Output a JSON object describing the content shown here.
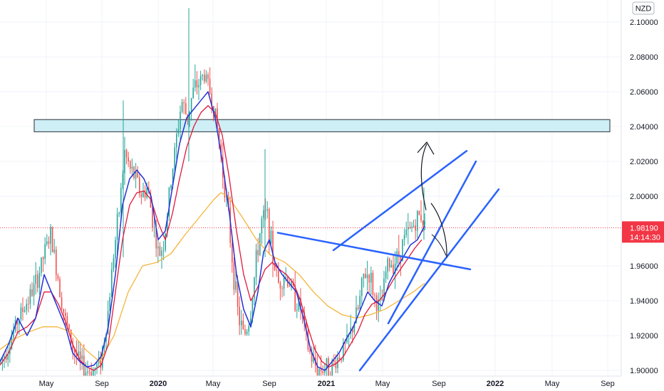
{
  "chart_data": {
    "type": "candlestick",
    "currency": "NZD",
    "ylim": [
      1.9,
      2.108
    ],
    "y_ticks": [
      "2.10000",
      "2.08000",
      "2.06000",
      "2.04000",
      "2.02000",
      "2.00000",
      "1.96000",
      "1.94000",
      "1.92000",
      "1.90000"
    ],
    "x_ticks": [
      "May",
      "Sep",
      "2020",
      "May",
      "Sep",
      "2021",
      "May",
      "Sep",
      "2022",
      "May",
      "Sep"
    ],
    "x_ticks_bold": [
      "2020",
      "2021",
      "2022"
    ],
    "last_price": "1.98190",
    "countdown": "14:14:30",
    "colors": {
      "up": "#26a69a",
      "down": "#ef5350",
      "ma_fast": "#2432d8",
      "ma_mid": "#e0183c",
      "ma_slow": "#f5b53a",
      "drawing": "#2962ff",
      "zone_fill": "#cdeff5",
      "price_label": "#f23645"
    },
    "candle_path": [
      [
        0,
        1.905
      ],
      [
        12,
        1.915
      ],
      [
        25,
        1.93
      ],
      [
        38,
        1.94
      ],
      [
        50,
        1.95
      ],
      [
        62,
        1.968
      ],
      [
        70,
        1.978
      ],
      [
        80,
        1.955
      ],
      [
        90,
        1.93
      ],
      [
        100,
        1.915
      ],
      [
        110,
        1.905
      ],
      [
        120,
        1.9
      ],
      [
        130,
        1.9
      ],
      [
        140,
        1.905
      ],
      [
        150,
        1.93
      ],
      [
        158,
        1.965
      ],
      [
        166,
        1.99
      ],
      [
        174,
        2.025
      ],
      [
        182,
        2.015
      ],
      [
        190,
        2.01
      ],
      [
        198,
        2.0
      ],
      [
        206,
        2.005
      ],
      [
        214,
        1.985
      ],
      [
        222,
        1.965
      ],
      [
        230,
        1.975
      ],
      [
        238,
        2.005
      ],
      [
        246,
        2.03
      ],
      [
        254,
        2.055
      ],
      [
        262,
        2.045
      ],
      [
        270,
        2.06
      ],
      [
        278,
        2.065
      ],
      [
        286,
        2.07
      ],
      [
        294,
        2.06
      ],
      [
        302,
        2.045
      ],
      [
        310,
        2.02
      ],
      [
        318,
        1.995
      ],
      [
        326,
        1.96
      ],
      [
        334,
        1.93
      ],
      [
        342,
        1.92
      ],
      [
        350,
        1.93
      ],
      [
        358,
        1.96
      ],
      [
        366,
        1.985
      ],
      [
        374,
        1.99
      ],
      [
        382,
        1.965
      ],
      [
        390,
        1.95
      ],
      [
        398,
        1.955
      ],
      [
        406,
        1.95
      ],
      [
        414,
        1.94
      ],
      [
        422,
        1.935
      ],
      [
        430,
        1.915
      ],
      [
        438,
        1.905
      ],
      [
        446,
        1.9
      ],
      [
        454,
        1.902
      ],
      [
        462,
        1.9
      ],
      [
        470,
        1.905
      ],
      [
        478,
        1.91
      ],
      [
        486,
        1.915
      ],
      [
        494,
        1.925
      ],
      [
        502,
        1.935
      ],
      [
        510,
        1.955
      ],
      [
        518,
        1.955
      ],
      [
        526,
        1.94
      ],
      [
        534,
        1.935
      ],
      [
        542,
        1.96
      ],
      [
        550,
        1.962
      ],
      [
        558,
        1.965
      ],
      [
        566,
        1.975
      ],
      [
        574,
        1.98
      ],
      [
        582,
        1.985
      ],
      [
        590,
        1.99
      ],
      [
        596,
        1.982
      ]
    ],
    "ma_fast": [
      [
        0,
        1.905
      ],
      [
        12,
        1.915
      ],
      [
        25,
        1.93
      ],
      [
        38,
        1.92
      ],
      [
        50,
        1.93
      ],
      [
        62,
        1.955
      ],
      [
        72,
        1.945
      ],
      [
        82,
        1.935
      ],
      [
        92,
        1.925
      ],
      [
        102,
        1.91
      ],
      [
        112,
        1.905
      ],
      [
        122,
        1.902
      ],
      [
        132,
        1.903
      ],
      [
        142,
        1.908
      ],
      [
        152,
        1.925
      ],
      [
        162,
        1.955
      ],
      [
        172,
        1.995
      ],
      [
        182,
        2.01
      ],
      [
        192,
        2.015
      ],
      [
        202,
        2.01
      ],
      [
        212,
        2.0
      ],
      [
        222,
        1.975
      ],
      [
        232,
        1.98
      ],
      [
        242,
        2.005
      ],
      [
        252,
        2.03
      ],
      [
        262,
        2.045
      ],
      [
        272,
        2.05
      ],
      [
        282,
        2.055
      ],
      [
        292,
        2.06
      ],
      [
        302,
        2.045
      ],
      [
        312,
        2.02
      ],
      [
        322,
        1.99
      ],
      [
        332,
        1.955
      ],
      [
        342,
        1.935
      ],
      [
        352,
        1.925
      ],
      [
        362,
        1.945
      ],
      [
        370,
        1.968
      ],
      [
        378,
        1.975
      ],
      [
        386,
        1.962
      ],
      [
        396,
        1.955
      ],
      [
        406,
        1.95
      ],
      [
        416,
        1.945
      ],
      [
        426,
        1.93
      ],
      [
        436,
        1.912
      ],
      [
        446,
        1.902
      ],
      [
        456,
        1.9
      ],
      [
        466,
        1.905
      ],
      [
        476,
        1.91
      ],
      [
        486,
        1.918
      ],
      [
        496,
        1.925
      ],
      [
        506,
        1.935
      ],
      [
        516,
        1.945
      ],
      [
        526,
        1.94
      ],
      [
        536,
        1.937
      ],
      [
        546,
        1.95
      ],
      [
        556,
        1.958
      ],
      [
        566,
        1.965
      ],
      [
        576,
        1.972
      ],
      [
        586,
        1.975
      ],
      [
        596,
        1.983
      ]
    ],
    "ma_mid": [
      [
        0,
        1.903
      ],
      [
        12,
        1.91
      ],
      [
        25,
        1.922
      ],
      [
        38,
        1.925
      ],
      [
        50,
        1.93
      ],
      [
        62,
        1.945
      ],
      [
        72,
        1.945
      ],
      [
        82,
        1.938
      ],
      [
        92,
        1.928
      ],
      [
        102,
        1.915
      ],
      [
        112,
        1.906
      ],
      [
        122,
        1.902
      ],
      [
        132,
        1.9
      ],
      [
        142,
        1.903
      ],
      [
        152,
        1.915
      ],
      [
        162,
        1.945
      ],
      [
        172,
        1.975
      ],
      [
        182,
        1.995
      ],
      [
        192,
        2.002
      ],
      [
        202,
        2.003
      ],
      [
        212,
        1.998
      ],
      [
        222,
        1.985
      ],
      [
        232,
        1.975
      ],
      [
        242,
        1.99
      ],
      [
        252,
        2.01
      ],
      [
        262,
        2.028
      ],
      [
        272,
        2.04
      ],
      [
        282,
        2.048
      ],
      [
        292,
        2.052
      ],
      [
        302,
        2.048
      ],
      [
        312,
        2.035
      ],
      [
        322,
        2.01
      ],
      [
        332,
        1.98
      ],
      [
        342,
        1.955
      ],
      [
        352,
        1.94
      ],
      [
        362,
        1.948
      ],
      [
        372,
        1.958
      ],
      [
        382,
        1.962
      ],
      [
        392,
        1.958
      ],
      [
        402,
        1.955
      ],
      [
        412,
        1.95
      ],
      [
        422,
        1.94
      ],
      [
        432,
        1.925
      ],
      [
        442,
        1.912
      ],
      [
        452,
        1.905
      ],
      [
        462,
        1.902
      ],
      [
        472,
        1.904
      ],
      [
        482,
        1.908
      ],
      [
        492,
        1.915
      ],
      [
        502,
        1.922
      ],
      [
        512,
        1.932
      ],
      [
        522,
        1.938
      ],
      [
        532,
        1.94
      ],
      [
        542,
        1.945
      ],
      [
        552,
        1.952
      ],
      [
        562,
        1.958
      ],
      [
        572,
        1.964
      ],
      [
        582,
        1.97
      ],
      [
        592,
        1.975
      ]
    ],
    "ma_slow": [
      [
        0,
        1.912
      ],
      [
        20,
        1.918
      ],
      [
        40,
        1.922
      ],
      [
        60,
        1.925
      ],
      [
        80,
        1.925
      ],
      [
        100,
        1.922
      ],
      [
        120,
        1.912
      ],
      [
        140,
        1.905
      ],
      [
        160,
        1.92
      ],
      [
        180,
        1.945
      ],
      [
        200,
        1.96
      ],
      [
        220,
        1.962
      ],
      [
        240,
        1.967
      ],
      [
        260,
        1.978
      ],
      [
        280,
        1.988
      ],
      [
        300,
        1.998
      ],
      [
        310,
        2.002
      ],
      [
        320,
        2.0
      ],
      [
        340,
        1.988
      ],
      [
        360,
        1.975
      ],
      [
        380,
        1.966
      ],
      [
        400,
        1.962
      ],
      [
        420,
        1.955
      ],
      [
        440,
        1.945
      ],
      [
        460,
        1.937
      ],
      [
        480,
        1.932
      ],
      [
        500,
        1.93
      ],
      [
        520,
        1.932
      ],
      [
        540,
        1.935
      ],
      [
        560,
        1.94
      ],
      [
        580,
        1.945
      ],
      [
        596,
        1.95
      ]
    ],
    "zone": {
      "from": 2.037,
      "to": 2.044
    }
  }
}
